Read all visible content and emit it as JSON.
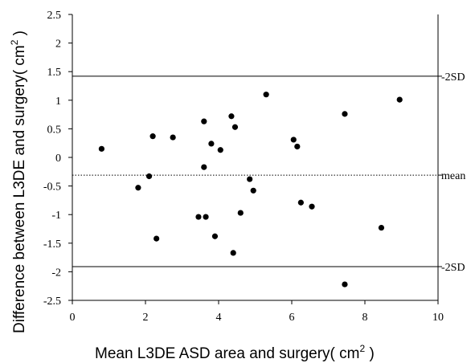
{
  "chart_data": {
    "type": "scatter",
    "title": "",
    "xlabel": "Mean L3DE ASD area and surgery( cm",
    "xlabel_sup": "2",
    "xlabel_tail": " )",
    "ylabel": "Difference between L3DE and surgery( cm",
    "ylabel_sup": "2",
    "ylabel_tail": " )",
    "xlim": [
      0,
      10
    ],
    "ylim": [
      -2.5,
      2.5
    ],
    "x_ticks": [
      0,
      2,
      4,
      6,
      8,
      10
    ],
    "y_ticks": [
      2.5,
      2,
      1.5,
      1,
      0.5,
      0,
      -0.5,
      -1,
      -1.5,
      -2,
      -2.5
    ],
    "x_tick_labels": [
      "0",
      "2",
      "4",
      "6",
      "8",
      "10"
    ],
    "y_tick_labels": [
      "2.5",
      "2",
      "1.5",
      "1",
      "0.5",
      "0",
      "-0.5",
      "-1",
      "-1.5",
      "-2",
      "-2.5"
    ],
    "grid": false,
    "reference_lines": [
      {
        "label": "-2SD",
        "y": 1.42,
        "style": "solid"
      },
      {
        "label": "mean",
        "y": -0.31,
        "style": "dotted"
      },
      {
        "label": "-2SD",
        "y": -1.91,
        "style": "solid"
      }
    ],
    "points": [
      {
        "x": 0.8,
        "y": 0.15
      },
      {
        "x": 1.8,
        "y": -0.53
      },
      {
        "x": 2.1,
        "y": -0.33
      },
      {
        "x": 2.2,
        "y": 0.37
      },
      {
        "x": 2.3,
        "y": -1.42
      },
      {
        "x": 2.75,
        "y": 0.35
      },
      {
        "x": 3.45,
        "y": -1.04
      },
      {
        "x": 3.6,
        "y": -0.17
      },
      {
        "x": 3.6,
        "y": 0.63
      },
      {
        "x": 3.65,
        "y": -1.04
      },
      {
        "x": 3.8,
        "y": 0.24
      },
      {
        "x": 3.9,
        "y": -1.38
      },
      {
        "x": 4.05,
        "y": 0.13
      },
      {
        "x": 4.35,
        "y": 0.72
      },
      {
        "x": 4.4,
        "y": -1.67
      },
      {
        "x": 4.45,
        "y": 0.53
      },
      {
        "x": 4.6,
        "y": -0.97
      },
      {
        "x": 4.85,
        "y": -0.38
      },
      {
        "x": 4.95,
        "y": -0.58
      },
      {
        "x": 5.3,
        "y": 1.1
      },
      {
        "x": 6.05,
        "y": 0.31
      },
      {
        "x": 6.15,
        "y": 0.19
      },
      {
        "x": 6.25,
        "y": -0.79
      },
      {
        "x": 6.55,
        "y": -0.86
      },
      {
        "x": 7.45,
        "y": 0.76
      },
      {
        "x": 7.45,
        "y": -2.22
      },
      {
        "x": 8.45,
        "y": -1.23
      },
      {
        "x": 8.95,
        "y": 1.01
      }
    ],
    "colors": {
      "marker": "#000000",
      "axis": "#000000",
      "background": "#ffffff"
    }
  }
}
